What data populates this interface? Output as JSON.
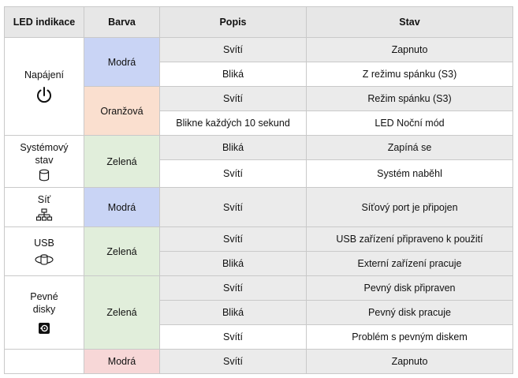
{
  "headers": {
    "led": "LED indikace",
    "color": "Barva",
    "description": "Popis",
    "state": "Stav"
  },
  "groups": [
    {
      "label": "Napájení",
      "icon": "power-icon",
      "colors": [
        {
          "name": "Modrá",
          "swatch": "#c9d4f5",
          "rows": [
            {
              "description": "Svítí",
              "state": "Zapnuto"
            },
            {
              "description": "Bliká",
              "state": "Z režimu spánku (S3)"
            }
          ]
        },
        {
          "name": "Oranžová",
          "swatch": "#fadfcf",
          "rows": [
            {
              "description": "Svítí",
              "state": "Režim spánku (S3)"
            },
            {
              "description": "Blikne každých 10 sekund",
              "state": "LED Noční mód"
            }
          ]
        }
      ]
    },
    {
      "label": "Systémový stav",
      "icon": "database-icon",
      "colors": [
        {
          "name": "Zelená",
          "swatch": "#e1eedb",
          "rows": [
            {
              "description": "Bliká",
              "state": "Zapíná se"
            },
            {
              "description": "Svítí",
              "state": "Systém naběhl"
            }
          ]
        }
      ]
    },
    {
      "label": "Síť",
      "icon": "network-icon",
      "colors": [
        {
          "name": "Modrá",
          "swatch": "#c9d4f5",
          "rows": [
            {
              "description": "Svítí",
              "state": "Síťový port je připojen"
            }
          ]
        }
      ]
    },
    {
      "label": "USB",
      "icon": "usb-storage-icon",
      "colors": [
        {
          "name": "Zelená",
          "swatch": "#e1eedb",
          "rows": [
            {
              "description": "Svítí",
              "state": "USB zařízení připraveno k použití"
            },
            {
              "description": "Bliká",
              "state": "Externí zařízení pracuje"
            }
          ]
        }
      ]
    },
    {
      "label": "Pevné disky",
      "icon": "hard-disk-icon",
      "colors": [
        {
          "name": "Zelená",
          "swatch": "#e1eedb",
          "rows": [
            {
              "description": "Svítí",
              "state": "Pevný disk připraven"
            },
            {
              "description": "Bliká",
              "state": "Pevný disk pracuje"
            },
            {
              "description": "Svítí",
              "state": "Problém s pevným diskem"
            }
          ]
        },
        {
          "name": "Modrá",
          "swatch": "#f7d7d7",
          "rows": [
            {
              "description": "Svítí",
              "state": "Zapnuto"
            }
          ]
        }
      ]
    }
  ]
}
